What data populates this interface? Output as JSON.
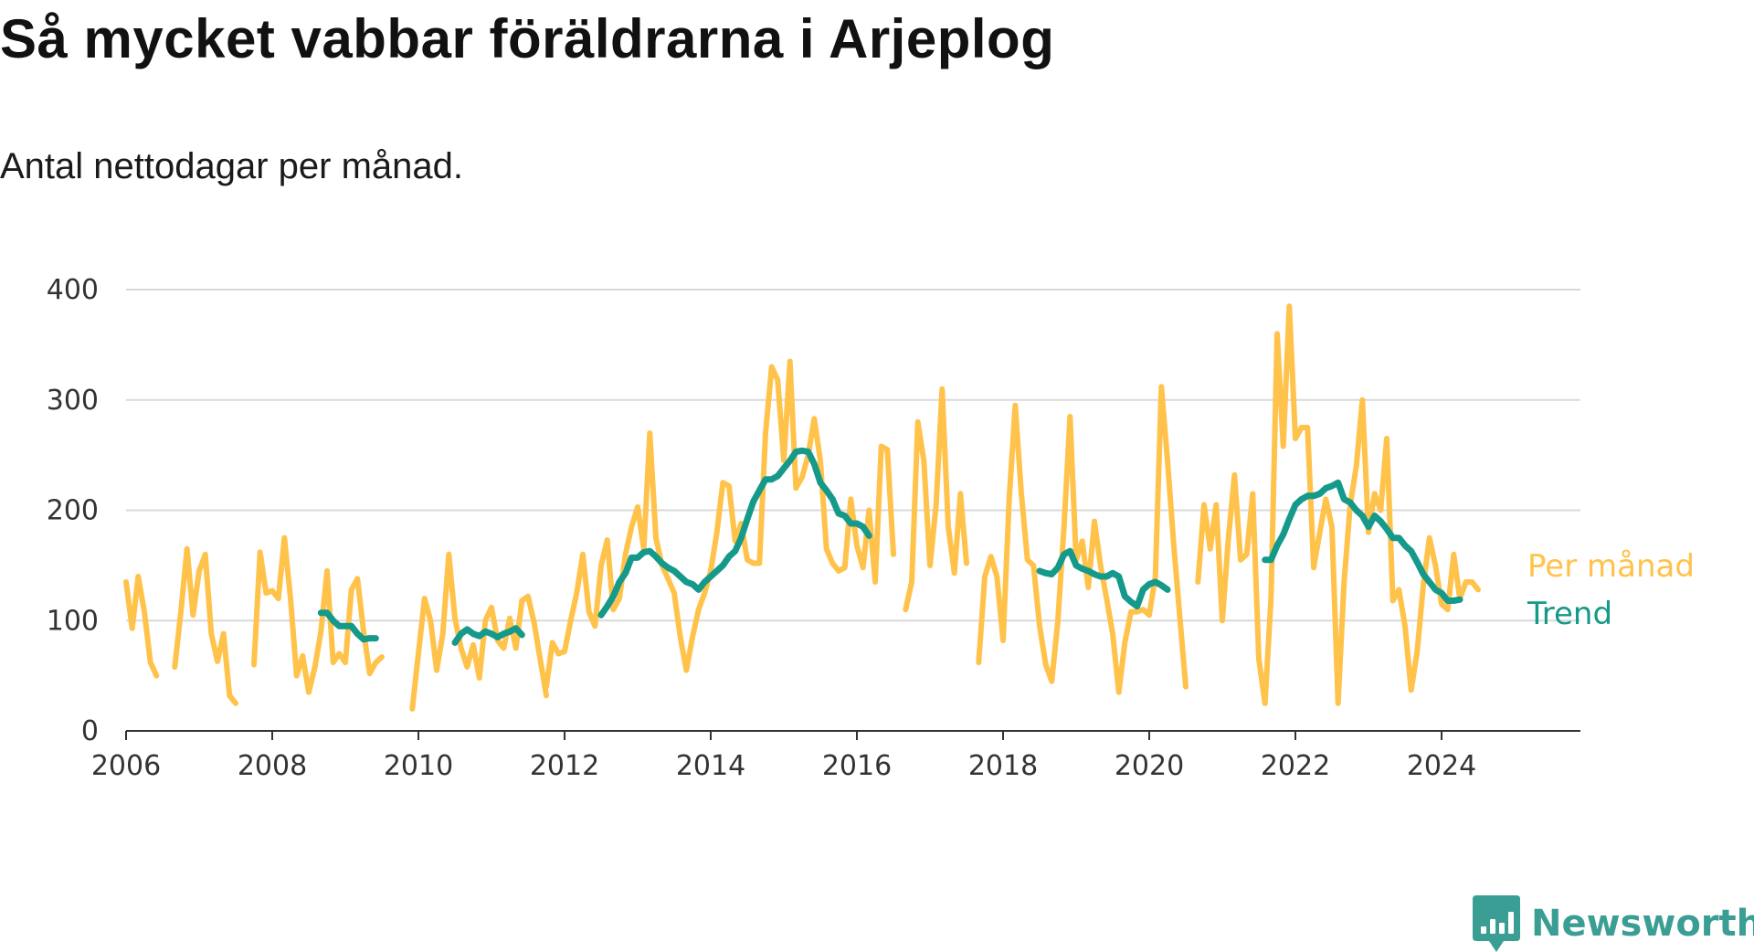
{
  "header": {
    "title": "Så mycket vabbar föräldrarna i Arjeplog",
    "subtitle": "Antal nettodagar per månad."
  },
  "brand": {
    "name": "Newsworthy",
    "icon": "newsworthy-logo-icon"
  },
  "colors": {
    "monthly": "#ffc24a",
    "trend": "#14998a",
    "grid": "#d9d9d9",
    "axis": "#333333",
    "brand": "#3a9e95"
  },
  "chart_data": {
    "type": "line",
    "title": "Så mycket vabbar föräldrarna i Arjeplog",
    "subtitle": "Antal nettodagar per månad.",
    "xlabel": "",
    "ylabel": "",
    "xlim": [
      2006,
      2025.9
    ],
    "ylim": [
      0,
      400
    ],
    "x_ticks": [
      2006,
      2008,
      2010,
      2012,
      2014,
      2016,
      2018,
      2020,
      2022,
      2024
    ],
    "y_ticks": [
      0,
      100,
      200,
      300,
      400
    ],
    "grid": "horizontal",
    "legend": "inline-right",
    "series": [
      {
        "name": "Per månad",
        "segments": [
          {
            "start": [
              2006,
              1
            ],
            "values": [
              135,
              93,
              140,
              108,
              62,
              50
            ]
          },
          {
            "start": [
              2006,
              9
            ],
            "values": [
              58,
              108,
              165,
              105,
              145,
              160,
              88,
              63,
              88,
              32,
              25
            ]
          },
          {
            "start": [
              2007,
              10
            ],
            "values": [
              60,
              162,
              125,
              127,
              120,
              175,
              120,
              50,
              68,
              35,
              58,
              90,
              145,
              62,
              70,
              62,
              128,
              138,
              90,
              52,
              62,
              67
            ]
          },
          {
            "start": [
              2009,
              12
            ],
            "values": [
              20,
              70,
              120,
              100,
              55,
              88,
              160,
              102,
              75,
              58,
              78,
              48,
              100,
              112,
              82,
              75,
              102,
              75,
              118,
              122,
              98,
              65,
              32
            ]
          },
          {
            "start": [
              2011,
              10
            ],
            "values": [
              40,
              80,
              70,
              72,
              100,
              125,
              160,
              108,
              95,
              150,
              173,
              110,
              120,
              160,
              185,
              203,
              165,
              270,
              175,
              150,
              138,
              125,
              85,
              55,
              85,
              110,
              125,
              145,
              180,
              225,
              222,
              172,
              188,
              155,
              152,
              152,
              270,
              330,
              318,
              245,
              335,
              220,
              230,
              250,
              283,
              245,
              165,
              152,
              145,
              148,
              210,
              168,
              148,
              200,
              135,
              258,
              255,
              160
            ]
          },
          {
            "start": [
              2016,
              9
            ],
            "values": [
              110,
              135,
              280,
              245,
              150,
              205,
              310,
              185,
              143,
              215,
              152
            ]
          },
          {
            "start": [
              2017,
              9
            ],
            "values": [
              62,
              140,
              158,
              140,
              82,
              210,
              295,
              215,
              155,
              150,
              95,
              60,
              45,
              100,
              185,
              285,
              155,
              172,
              130,
              190,
              150,
              120,
              88,
              35,
              80,
              108,
              108,
              110,
              105,
              140,
              312,
              245,
              170,
              105,
              40
            ]
          },
          {
            "start": [
              2020,
              9
            ],
            "values": [
              135,
              205,
              165,
              205,
              100,
              175,
              232,
              155,
              160,
              215,
              65,
              25,
              120,
              360,
              258,
              385,
              265,
              275,
              275,
              148,
              180,
              210,
              185,
              25,
              135,
              205,
              240,
              300,
              180,
              215,
              200,
              265,
              118,
              128,
              95,
              37,
              72,
              132,
              175,
              150,
              115,
              110,
              160,
              120,
              135,
              135,
              128
            ]
          }
        ]
      },
      {
        "name": "Trend",
        "segments": [
          {
            "start": [
              2008,
              9
            ],
            "values": [
              107,
              107,
              100,
              95,
              95,
              95,
              88,
              83,
              84,
              84
            ]
          },
          {
            "start": [
              2010,
              7
            ],
            "values": [
              80,
              88,
              92,
              88,
              86,
              90,
              88,
              85,
              88,
              90,
              93,
              87
            ]
          },
          {
            "start": [
              2012,
              7
            ],
            "values": [
              105,
              113,
              122,
              135,
              143,
              157,
              157,
              162,
              163,
              158,
              152,
              148,
              145,
              140,
              135,
              133,
              128,
              135,
              140,
              145,
              150,
              158,
              163,
              175,
              192,
              208,
              218,
              228,
              228,
              231,
              238,
              245,
              253,
              254,
              253,
              242,
              225,
              218,
              210,
              197,
              195,
              188,
              188,
              185,
              177
            ]
          },
          {
            "start": [
              2018,
              7
            ],
            "values": [
              145,
              143,
              142,
              148,
              160,
              163,
              150,
              147,
              145,
              142,
              140,
              140,
              143,
              140,
              122,
              117,
              113,
              128,
              133,
              135,
              132,
              128
            ]
          },
          {
            "start": [
              2021,
              8
            ],
            "values": [
              155,
              155,
              168,
              178,
              192,
              205,
              210,
              213,
              213,
              215,
              220,
              222,
              225,
              210,
              207,
              200,
              195,
              185,
              195,
              190,
              183,
              175,
              175,
              168,
              163,
              153,
              142,
              135,
              128,
              125,
              118,
              118,
              119
            ]
          }
        ]
      }
    ]
  }
}
